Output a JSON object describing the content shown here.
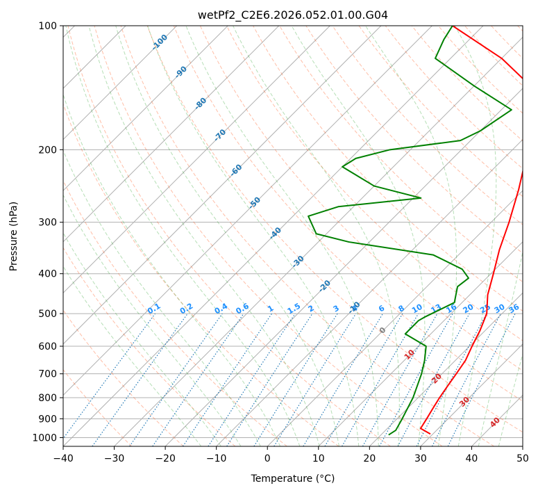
{
  "chart_data": {
    "type": "line",
    "title": "wetPf2_C2E6.2026.052.01.00.G04",
    "xlabel": "Temperature (°C)",
    "ylabel": "Pressure (hPa)",
    "xlim": [
      -40,
      50
    ],
    "ylim": [
      1050,
      100
    ],
    "x_ticks": [
      -40,
      -30,
      -20,
      -10,
      0,
      10,
      20,
      30,
      40,
      50
    ],
    "y_ticks": [
      100,
      200,
      300,
      400,
      500,
      600,
      700,
      800,
      900,
      1000
    ],
    "grid": true,
    "skew": 1.0,
    "colors": {
      "temperature": "#ff0000",
      "dewpoint": "#008000",
      "dry_adiabat": "#ff4500",
      "moist_adiabat": "#2ca02c",
      "mixing_ratio": "#1f77b4",
      "mixing_label": "#1e90ff",
      "isotherm": "#808080",
      "hot_label": "#d62728",
      "frost": "#d2b48c"
    },
    "series": [
      {
        "name": "Temperature",
        "points": [
          [
            29.5,
            980
          ],
          [
            26.5,
            950
          ],
          [
            25.8,
            900
          ],
          [
            25.0,
            850
          ],
          [
            24.2,
            800
          ],
          [
            23.5,
            750
          ],
          [
            22.8,
            700
          ],
          [
            22.0,
            650
          ],
          [
            20.5,
            600
          ],
          [
            19.0,
            550
          ],
          [
            17.0,
            500
          ],
          [
            13.5,
            450
          ],
          [
            10.5,
            400
          ],
          [
            7.0,
            350
          ],
          [
            3.5,
            300
          ],
          [
            -1.0,
            250
          ],
          [
            -7.0,
            200
          ],
          [
            -14.0,
            150
          ],
          [
            -30.0,
            120
          ],
          [
            -46.0,
            100
          ]
        ]
      },
      {
        "name": "Dewpoint",
        "points": [
          [
            21.5,
            985
          ],
          [
            22.0,
            960
          ],
          [
            21.0,
            900
          ],
          [
            19.0,
            800
          ],
          [
            16.0,
            700
          ],
          [
            14.0,
            650
          ],
          [
            11.5,
            600
          ],
          [
            5.0,
            560
          ],
          [
            5.0,
            520
          ],
          [
            5.5,
            510
          ],
          [
            8.5,
            470
          ],
          [
            6.0,
            430
          ],
          [
            6.5,
            410
          ],
          [
            3.5,
            390
          ],
          [
            -5.0,
            360
          ],
          [
            -24.0,
            335
          ],
          [
            -32.0,
            320
          ],
          [
            -37.0,
            290
          ],
          [
            -33.0,
            275
          ],
          [
            -18.5,
            262
          ],
          [
            -30.0,
            245
          ],
          [
            -40.0,
            220
          ],
          [
            -39.0,
            210
          ],
          [
            -34.0,
            200
          ],
          [
            -22.0,
            190
          ],
          [
            -20.0,
            180
          ],
          [
            -18.0,
            160
          ],
          [
            -30.0,
            140
          ],
          [
            -43.0,
            120
          ],
          [
            -45.0,
            108
          ],
          [
            -46.0,
            100
          ]
        ]
      }
    ],
    "isotherm_labels": [
      {
        "value": 0,
        "text": "0"
      },
      {
        "value": 10,
        "text": "10"
      },
      {
        "value": 20,
        "text": "20"
      },
      {
        "value": 30,
        "text": "30"
      },
      {
        "value": 40,
        "text": "40"
      }
    ],
    "cold_isotherm_labels": [
      {
        "value": -100,
        "text": "-100"
      },
      {
        "value": -90,
        "text": "-90"
      },
      {
        "value": -80,
        "text": "-80"
      },
      {
        "value": -70,
        "text": "-70"
      },
      {
        "value": -60,
        "text": "-60"
      },
      {
        "value": -50,
        "text": "-50"
      },
      {
        "value": -40,
        "text": "-40"
      },
      {
        "value": -30,
        "text": "-30"
      },
      {
        "value": -20,
        "text": "-20"
      },
      {
        "value": -10,
        "text": "-10"
      }
    ],
    "mixing_ratios": [
      0.1,
      0.2,
      0.4,
      0.6,
      1,
      1.5,
      2,
      3,
      4,
      6,
      8,
      10,
      13,
      16,
      20,
      25,
      30,
      36
    ],
    "mixing_ratio_labels": [
      "0.1",
      "0.2",
      "0.4",
      "0.6",
      "1",
      "1.5",
      "2",
      "3",
      "4",
      "6",
      "8",
      "10",
      "13",
      "16",
      "20",
      "25",
      "30",
      "36"
    ]
  }
}
